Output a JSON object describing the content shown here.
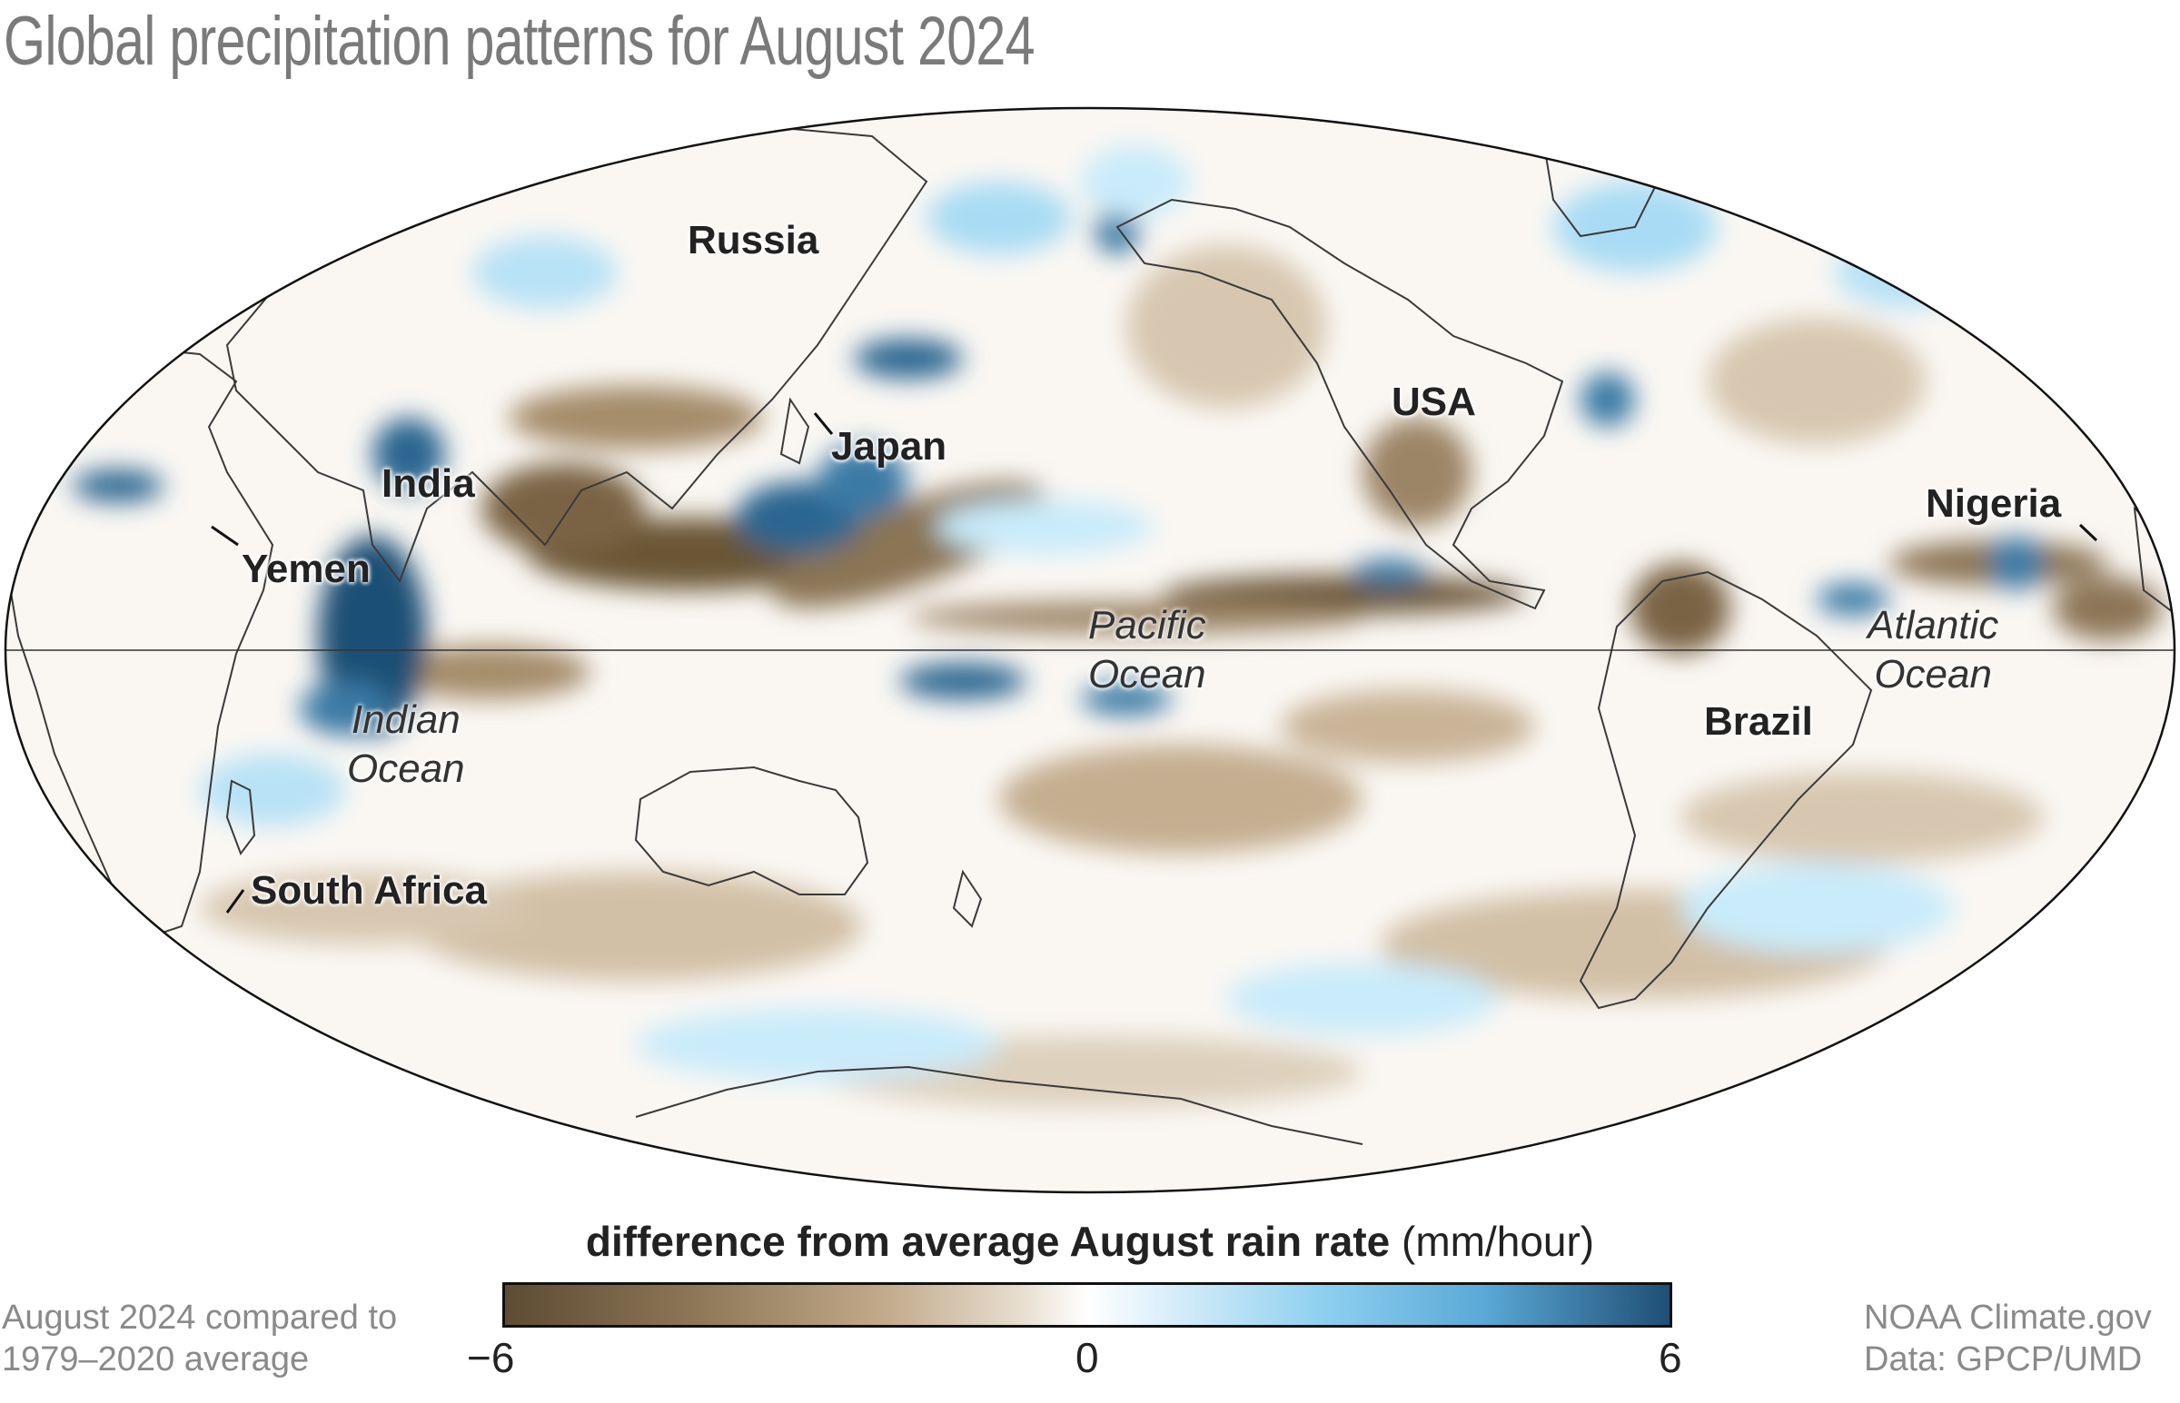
{
  "title": "Global precipitation patterns for August 2024",
  "map": {
    "projection": "Mollweide",
    "colors": {
      "dry_strong": "#5d4b33",
      "dry": "#a58c6a",
      "neutral": "#ffffff",
      "wet": "#8fd0f0",
      "wet_strong": "#1f4f75",
      "outline": "#222222"
    },
    "labels": {
      "russia": "Russia",
      "japan": "Japan",
      "india": "India",
      "yemen": "Yemen",
      "usa": "USA",
      "nigeria": "Nigeria",
      "brazil": "Brazil",
      "south_africa": "South Africa",
      "pacific_l1": "Pacific",
      "pacific_l2": "Ocean",
      "atlantic_l1": "Atlantic",
      "atlantic_l2": "Ocean",
      "indian_l1": "Indian",
      "indian_l2": "Ocean"
    }
  },
  "legend": {
    "title_bold": "difference from average August rain rate",
    "title_units": "(mm/hour)",
    "min_label": "−6",
    "mid_label": "0",
    "max_label": "6",
    "min": -6,
    "max": 6
  },
  "footer": {
    "left_line1": "August 2024 compared to",
    "left_line2": "1979–2020 average",
    "right_line1": "NOAA Climate.gov",
    "right_line2": "Data: GPCP/UMD"
  }
}
